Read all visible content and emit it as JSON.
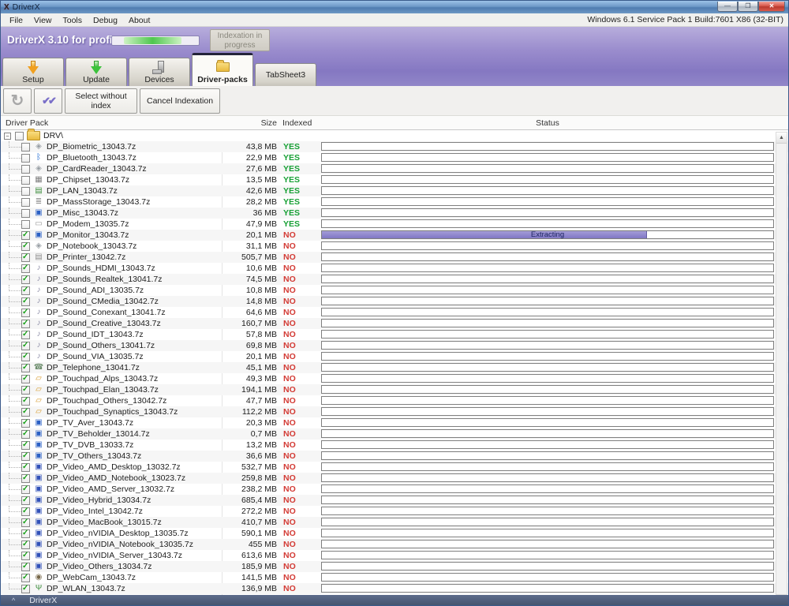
{
  "window": {
    "icon": "X",
    "title": "DriverX",
    "controls": {
      "minimize": "—",
      "maximize": "❐",
      "close": "✕"
    }
  },
  "menu_bar": {
    "items": [
      "File",
      "View",
      "Tools",
      "Debug",
      "About"
    ],
    "system_info": "Windows 6.1 Service Pack 1 Build:7601 X86 (32-BIT)"
  },
  "app_header": {
    "brand": "DriverX 3.10 for profi",
    "status_button": "Indexation in progress"
  },
  "tabs": [
    {
      "label": "Setup",
      "icon": "setup-arrow",
      "active": false
    },
    {
      "label": "Update",
      "icon": "update-arrow",
      "active": false
    },
    {
      "label": "Devices",
      "icon": "devices",
      "active": false
    },
    {
      "label": "Driver-packs",
      "icon": "driver-packs-folder",
      "active": true
    },
    {
      "label": "TabSheet3",
      "icon": null,
      "active": false
    }
  ],
  "toolbar": {
    "refresh_button": "↻",
    "checks_button": "✔✔",
    "select_without_index": "Select without index",
    "cancel_indexation": "Cancel Indexation"
  },
  "table": {
    "columns": [
      "Driver Pack",
      "Size",
      "Indexed",
      "Status"
    ],
    "root": {
      "label": "DRV\\",
      "checked": false,
      "expanded": true
    },
    "rows": [
      {
        "name": "DP_Biometric_13043.7z",
        "size": "43,8 MB",
        "indexed": "YES",
        "checked": false,
        "icon": "unknown-device"
      },
      {
        "name": "DP_Bluetooth_13043.7z",
        "size": "22,9 MB",
        "indexed": "YES",
        "checked": false,
        "icon": "bluetooth"
      },
      {
        "name": "DP_CardReader_13043.7z",
        "size": "27,6 MB",
        "indexed": "YES",
        "checked": false,
        "icon": "unknown-device"
      },
      {
        "name": "DP_Chipset_13043.7z",
        "size": "13,5 MB",
        "indexed": "YES",
        "checked": false,
        "icon": "chipset"
      },
      {
        "name": "DP_LAN_13043.7z",
        "size": "42,6 MB",
        "indexed": "YES",
        "checked": false,
        "icon": "network"
      },
      {
        "name": "DP_MassStorage_13043.7z",
        "size": "28,2 MB",
        "indexed": "YES",
        "checked": false,
        "icon": "storage"
      },
      {
        "name": "DP_Misc_13043.7z",
        "size": "36 MB",
        "indexed": "YES",
        "checked": false,
        "icon": "monitor"
      },
      {
        "name": "DP_Modem_13035.7z",
        "size": "47,9 MB",
        "indexed": "YES",
        "checked": false,
        "icon": "modem"
      },
      {
        "name": "DP_Monitor_13043.7z",
        "size": "20,1 MB",
        "indexed": "NO",
        "checked": true,
        "icon": "monitor",
        "progress": 72,
        "progress_label": "Extracting"
      },
      {
        "name": "DP_Notebook_13043.7z",
        "size": "31,1 MB",
        "indexed": "NO",
        "checked": true,
        "icon": "unknown-device"
      },
      {
        "name": "DP_Printer_13042.7z",
        "size": "505,7 MB",
        "indexed": "NO",
        "checked": true,
        "icon": "printer"
      },
      {
        "name": "DP_Sounds_HDMI_13043.7z",
        "size": "10,6 MB",
        "indexed": "NO",
        "checked": true,
        "icon": "sound"
      },
      {
        "name": "DP_Sounds_Realtek_13041.7z",
        "size": "74,5 MB",
        "indexed": "NO",
        "checked": true,
        "icon": "sound"
      },
      {
        "name": "DP_Sound_ADI_13035.7z",
        "size": "10,8 MB",
        "indexed": "NO",
        "checked": true,
        "icon": "sound"
      },
      {
        "name": "DP_Sound_CMedia_13042.7z",
        "size": "14,8 MB",
        "indexed": "NO",
        "checked": true,
        "icon": "sound"
      },
      {
        "name": "DP_Sound_Conexant_13041.7z",
        "size": "64,6 MB",
        "indexed": "NO",
        "checked": true,
        "icon": "sound"
      },
      {
        "name": "DP_Sound_Creative_13043.7z",
        "size": "160,7 MB",
        "indexed": "NO",
        "checked": true,
        "icon": "sound"
      },
      {
        "name": "DP_Sound_IDT_13043.7z",
        "size": "57,8 MB",
        "indexed": "NO",
        "checked": true,
        "icon": "sound"
      },
      {
        "name": "DP_Sound_Others_13041.7z",
        "size": "69,8 MB",
        "indexed": "NO",
        "checked": true,
        "icon": "sound"
      },
      {
        "name": "DP_Sound_VIA_13035.7z",
        "size": "20,1 MB",
        "indexed": "NO",
        "checked": true,
        "icon": "sound"
      },
      {
        "name": "DP_Telephone_13041.7z",
        "size": "45,1 MB",
        "indexed": "NO",
        "checked": true,
        "icon": "telephone"
      },
      {
        "name": "DP_Touchpad_Alps_13043.7z",
        "size": "49,3 MB",
        "indexed": "NO",
        "checked": true,
        "icon": "touchpad"
      },
      {
        "name": "DP_Touchpad_Elan_13043.7z",
        "size": "194,1 MB",
        "indexed": "NO",
        "checked": true,
        "icon": "touchpad"
      },
      {
        "name": "DP_Touchpad_Others_13042.7z",
        "size": "47,7 MB",
        "indexed": "NO",
        "checked": true,
        "icon": "touchpad"
      },
      {
        "name": "DP_Touchpad_Synaptics_13043.7z",
        "size": "112,2 MB",
        "indexed": "NO",
        "checked": true,
        "icon": "touchpad"
      },
      {
        "name": "DP_TV_Aver_13043.7z",
        "size": "20,3 MB",
        "indexed": "NO",
        "checked": true,
        "icon": "tv"
      },
      {
        "name": "DP_TV_Beholder_13014.7z",
        "size": "0,7 MB",
        "indexed": "NO",
        "checked": true,
        "icon": "tv"
      },
      {
        "name": "DP_TV_DVB_13033.7z",
        "size": "13,2 MB",
        "indexed": "NO",
        "checked": true,
        "icon": "tv"
      },
      {
        "name": "DP_TV_Others_13043.7z",
        "size": "36,6 MB",
        "indexed": "NO",
        "checked": true,
        "icon": "tv"
      },
      {
        "name": "DP_Video_AMD_Desktop_13032.7z",
        "size": "532,7 MB",
        "indexed": "NO",
        "checked": true,
        "icon": "video"
      },
      {
        "name": "DP_Video_AMD_Notebook_13023.7z",
        "size": "259,8 MB",
        "indexed": "NO",
        "checked": true,
        "icon": "video"
      },
      {
        "name": "DP_Video_AMD_Server_13032.7z",
        "size": "238,2 MB",
        "indexed": "NO",
        "checked": true,
        "icon": "video"
      },
      {
        "name": "DP_Video_Hybrid_13034.7z",
        "size": "685,4 MB",
        "indexed": "NO",
        "checked": true,
        "icon": "video"
      },
      {
        "name": "DP_Video_Intel_13042.7z",
        "size": "272,2 MB",
        "indexed": "NO",
        "checked": true,
        "icon": "video"
      },
      {
        "name": "DP_Video_MacBook_13015.7z",
        "size": "410,7 MB",
        "indexed": "NO",
        "checked": true,
        "icon": "video"
      },
      {
        "name": "DP_Video_nVIDIA_Desktop_13035.7z",
        "size": "590,1 MB",
        "indexed": "NO",
        "checked": true,
        "icon": "video"
      },
      {
        "name": "DP_Video_nVIDIA_Notebook_13035.7z",
        "size": "455 MB",
        "indexed": "NO",
        "checked": true,
        "icon": "video"
      },
      {
        "name": "DP_Video_nVIDIA_Server_13043.7z",
        "size": "613,6 MB",
        "indexed": "NO",
        "checked": true,
        "icon": "video"
      },
      {
        "name": "DP_Video_Others_13034.7z",
        "size": "185,9 MB",
        "indexed": "NO",
        "checked": true,
        "icon": "video"
      },
      {
        "name": "DP_WebCam_13043.7z",
        "size": "141,5 MB",
        "indexed": "NO",
        "checked": true,
        "icon": "webcam"
      },
      {
        "name": "DP_WLAN_13043.7z",
        "size": "136,9 MB",
        "indexed": "NO",
        "checked": true,
        "icon": "wlan"
      }
    ]
  },
  "status_bar": {
    "caret": "^",
    "label": "DriverX"
  },
  "icon_glyphs": {
    "unknown-device": {
      "glyph": "◈",
      "color": "#9aa0a6"
    },
    "bluetooth": {
      "glyph": "ᛒ",
      "color": "#1565d0"
    },
    "chipset": {
      "glyph": "▦",
      "color": "#7f7f7f"
    },
    "network": {
      "glyph": "▤",
      "color": "#3f8f3f"
    },
    "storage": {
      "glyph": "≣",
      "color": "#8f8f8f"
    },
    "monitor": {
      "glyph": "▣",
      "color": "#2a5fc4"
    },
    "modem": {
      "glyph": "▭",
      "color": "#9a9a9a"
    },
    "printer": {
      "glyph": "▤",
      "color": "#8f8f8f"
    },
    "sound": {
      "glyph": "♪",
      "color": "#8f8fa8"
    },
    "telephone": {
      "glyph": "☎",
      "color": "#6f8f6f"
    },
    "touchpad": {
      "glyph": "▱",
      "color": "#d79b2d"
    },
    "tv": {
      "glyph": "▣",
      "color": "#2a5fc4"
    },
    "video": {
      "glyph": "▣",
      "color": "#3050b8"
    },
    "webcam": {
      "glyph": "◉",
      "color": "#77684a"
    },
    "wlan": {
      "glyph": "Ψ",
      "color": "#3f8f3f"
    }
  },
  "colors": {
    "accent_purple": "#8578c2",
    "indexed_yes": "#17a035",
    "indexed_no": "#d33b35",
    "extract_fill": "#8077c4"
  }
}
